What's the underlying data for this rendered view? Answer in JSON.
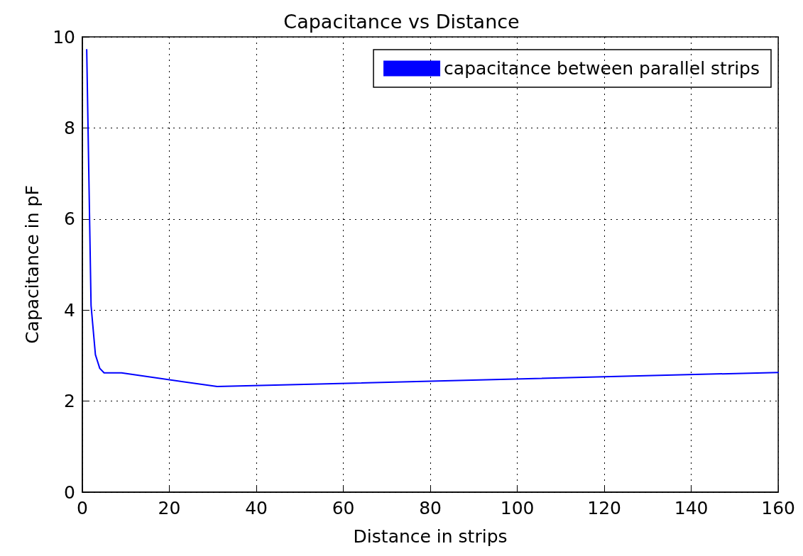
{
  "chart_data": {
    "type": "line",
    "title": "Capacitance vs Distance",
    "xlabel": "Distance in strips",
    "ylabel": "Capacitance in pF",
    "x": [
      1,
      2,
      3,
      4,
      5,
      9,
      31,
      160
    ],
    "series": [
      {
        "name": "capacitance between parallel strips",
        "color": "#0000ff",
        "values": [
          9.72,
          4.1,
          3.02,
          2.72,
          2.62,
          2.62,
          2.32,
          2.63
        ]
      }
    ],
    "xlim": [
      0,
      160
    ],
    "xticks": [
      0,
      20,
      40,
      60,
      80,
      100,
      120,
      140,
      160
    ],
    "ylim": [
      0,
      10
    ],
    "yticks": [
      0,
      2,
      4,
      6,
      8,
      10
    ],
    "grid": true,
    "legend": "top right",
    "marker": "none",
    "line_style": "solid"
  }
}
